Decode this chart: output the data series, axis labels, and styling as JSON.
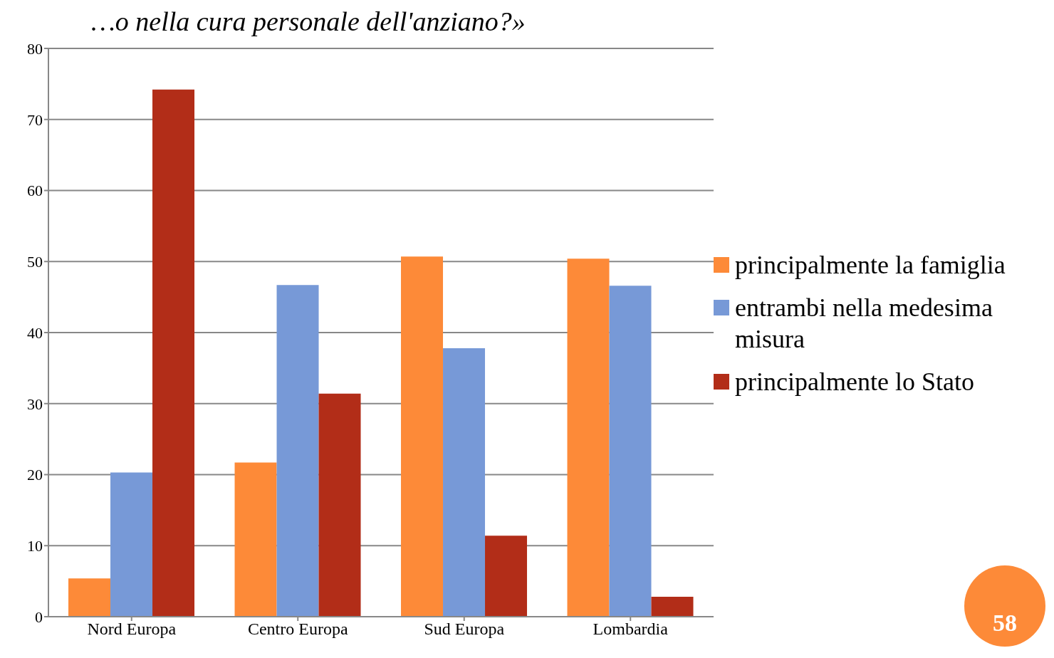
{
  "chart_data": {
    "type": "bar",
    "title": "…o nella cura personale dell'anziano?»",
    "categories": [
      "Nord Europa",
      "Centro Europa",
      "Sud Europa",
      "Lombardia"
    ],
    "series": [
      {
        "name": "principalmente la famiglia",
        "color": "#fd8a38",
        "values": [
          5.4,
          21.7,
          50.7,
          50.4
        ]
      },
      {
        "name": "entrambi nella medesima misura",
        "color": "#7799d7",
        "values": [
          20.3,
          46.7,
          37.8,
          46.6
        ]
      },
      {
        "name": "principalmente lo Stato",
        "color": "#b22d18",
        "values": [
          74.2,
          31.4,
          11.4,
          2.8
        ]
      }
    ],
    "ylim": [
      0,
      80
    ],
    "yticks": [
      0,
      10,
      20,
      30,
      40,
      50,
      60,
      70,
      80
    ],
    "grid": "y",
    "legend": "right",
    "annotations": [
      "58"
    ]
  }
}
